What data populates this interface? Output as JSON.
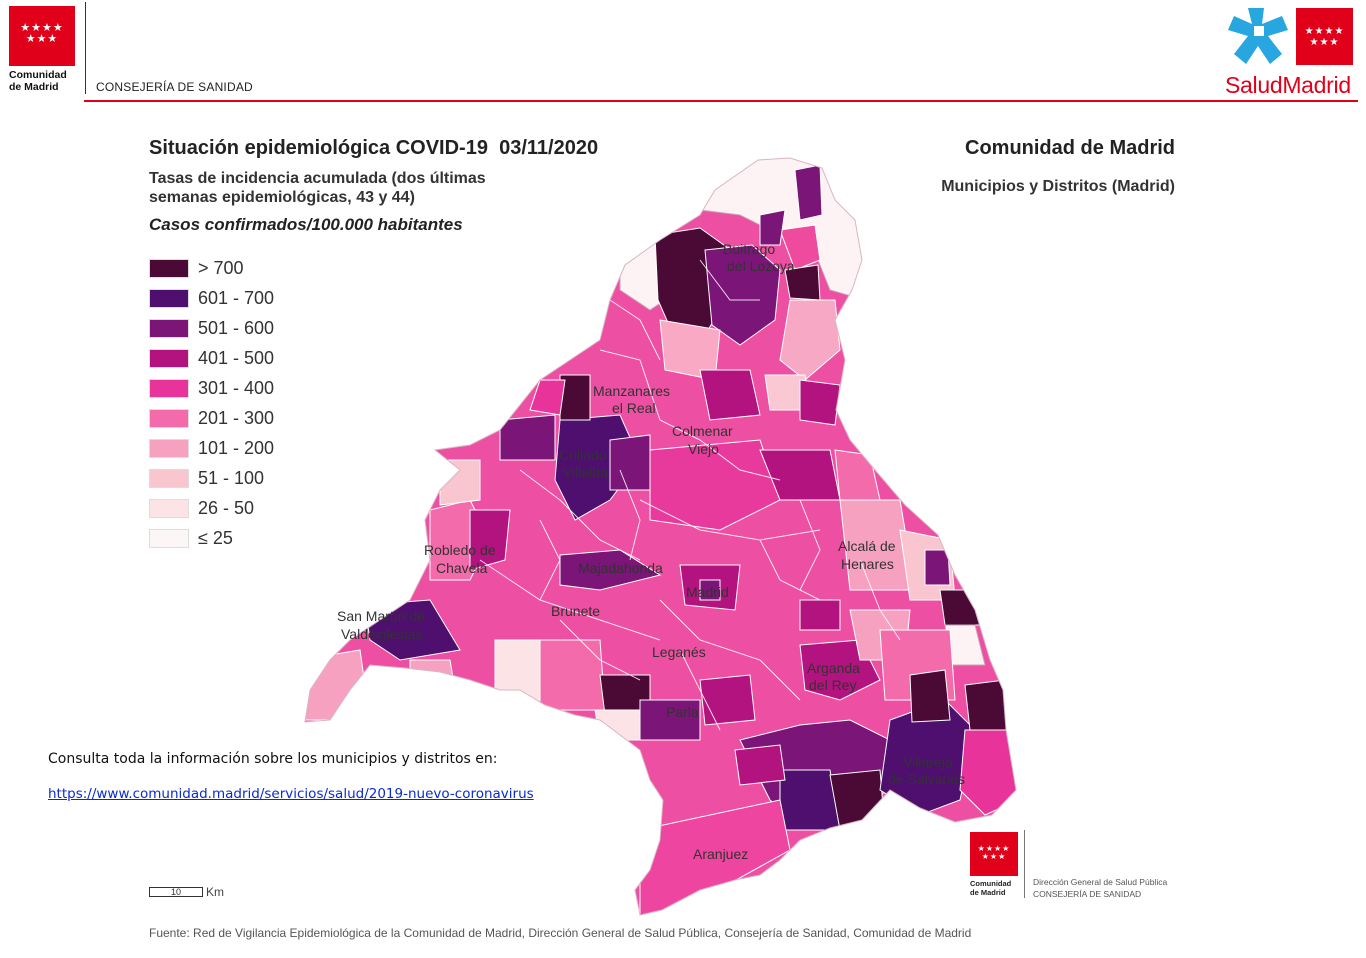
{
  "header": {
    "org_line1": "Comunidad",
    "org_line2": "de Madrid",
    "department": "CONSEJERÍA DE SANIDAD",
    "brand_salud": "Salud",
    "brand_madrid": "Madrid",
    "stars": "★★★★\n★★★"
  },
  "title": "Situación epidemiológica COVID-19  03/11/2020",
  "subtitle_line1": "Tasas de incidencia acumulada (dos últimas",
  "subtitle_line2": "semanas epidemiológicas, 43 y 44)",
  "units": "Casos confirmados/100.000 habitantes",
  "region_title": "Comunidad de Madrid",
  "region_subtitle": "Municipios y Distritos (Madrid)",
  "legend": [
    {
      "label": "> 700",
      "color": "#4a0a35"
    },
    {
      "label": "601 - 700",
      "color": "#4e0f6e"
    },
    {
      "label": "501 - 600",
      "color": "#7b1577"
    },
    {
      "label": "401 - 500",
      "color": "#b3137f"
    },
    {
      "label": "301 - 400",
      "color": "#e8339a"
    },
    {
      "label": "201 - 300",
      "color": "#f46bab"
    },
    {
      "label": "101 - 200",
      "color": "#f7a1c0"
    },
    {
      "label": "51 - 100",
      "color": "#f9c6cf"
    },
    {
      "label": "26 - 50",
      "color": "#fbe3e6"
    },
    {
      "label": "≤ 25",
      "color": "#fdf6f6"
    }
  ],
  "map_labels": {
    "buitrago": "Buitrago",
    "lozoya": "del Lozoya",
    "manzanares1": "Manzanares",
    "manzanares2": "el Real",
    "colmenar1": "Colmenar",
    "colmenar2": "Viejo",
    "collado1": "Collado",
    "collado2": "Villalba",
    "robledo1": "Robledo de",
    "robledo2": "Chavela",
    "majadahonda": "Majadahonda",
    "madrid": "Madrid",
    "alcala1": "Alcalá de",
    "alcala2": "Henares",
    "sanmartin1": "San Martín de",
    "sanmartin2": "Valdeiglesias",
    "brunete": "Brunete",
    "leganes": "Leganés",
    "arganda1": "Arganda",
    "arganda2": "del Rey",
    "parla": "Parla",
    "villarejo1": "Villarejo",
    "villarejo2": "de Salvanés",
    "aranjuez": "Aranjuez"
  },
  "info_text": "Consulta toda la información sobre los municipios y distritos en:",
  "info_link": "https://www.comunidad.madrid/servicios/salud/2019-nuevo-coronavirus",
  "scale": {
    "value": "10",
    "unit": "Km"
  },
  "footer_logo": {
    "org_line1": "Comunidad",
    "org_line2": "de Madrid",
    "dg_line1": "Dirección General de Salud Pública",
    "dg_line2": "CONSEJERÍA DE SANIDAD"
  },
  "source": "Fuente: Red de Vigilancia Epidemiológica de la Comunidad de Madrid, Dirección General de Salud Pública, Consejería de Sanidad, Comunidad de Madrid",
  "colors": {
    "brand_red": "#e1001a",
    "brand_blue": "#27a6e0",
    "link": "#0a2ad2"
  }
}
